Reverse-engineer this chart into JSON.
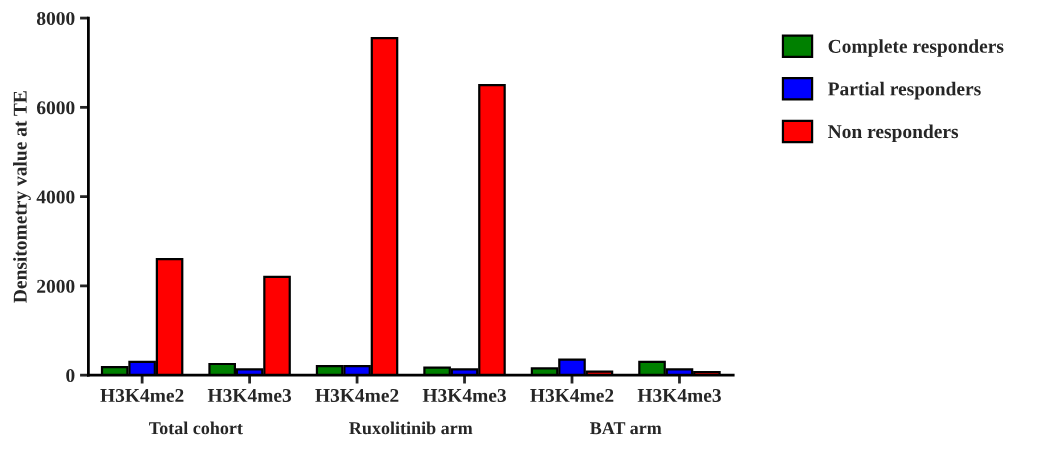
{
  "chart_data": {
    "type": "bar",
    "ylabel": "Densitometry value at TE",
    "categories": [
      "H3K4me2",
      "H3K4me3",
      "H3K4me2",
      "H3K4me3",
      "H3K4me2",
      "H3K4me3"
    ],
    "series": [
      {
        "name": "Complete responders",
        "color": "#008000",
        "values": [
          180,
          250,
          200,
          170,
          150,
          300
        ]
      },
      {
        "name": "Partial responders",
        "color": "#0000ff",
        "values": [
          300,
          130,
          200,
          130,
          350,
          130
        ]
      },
      {
        "name": "Non responders",
        "color": "#ff0000",
        "values": [
          2600,
          2200,
          7550,
          6500,
          80,
          70
        ]
      }
    ],
    "annotations": [
      "Total cohort",
      "Ruxolitinib arm",
      "BAT arm"
    ],
    "ylim": [
      0,
      8000
    ],
    "yticks": [
      0,
      2000,
      4000,
      6000,
      8000
    ],
    "grid": false,
    "legend": "top right"
  }
}
